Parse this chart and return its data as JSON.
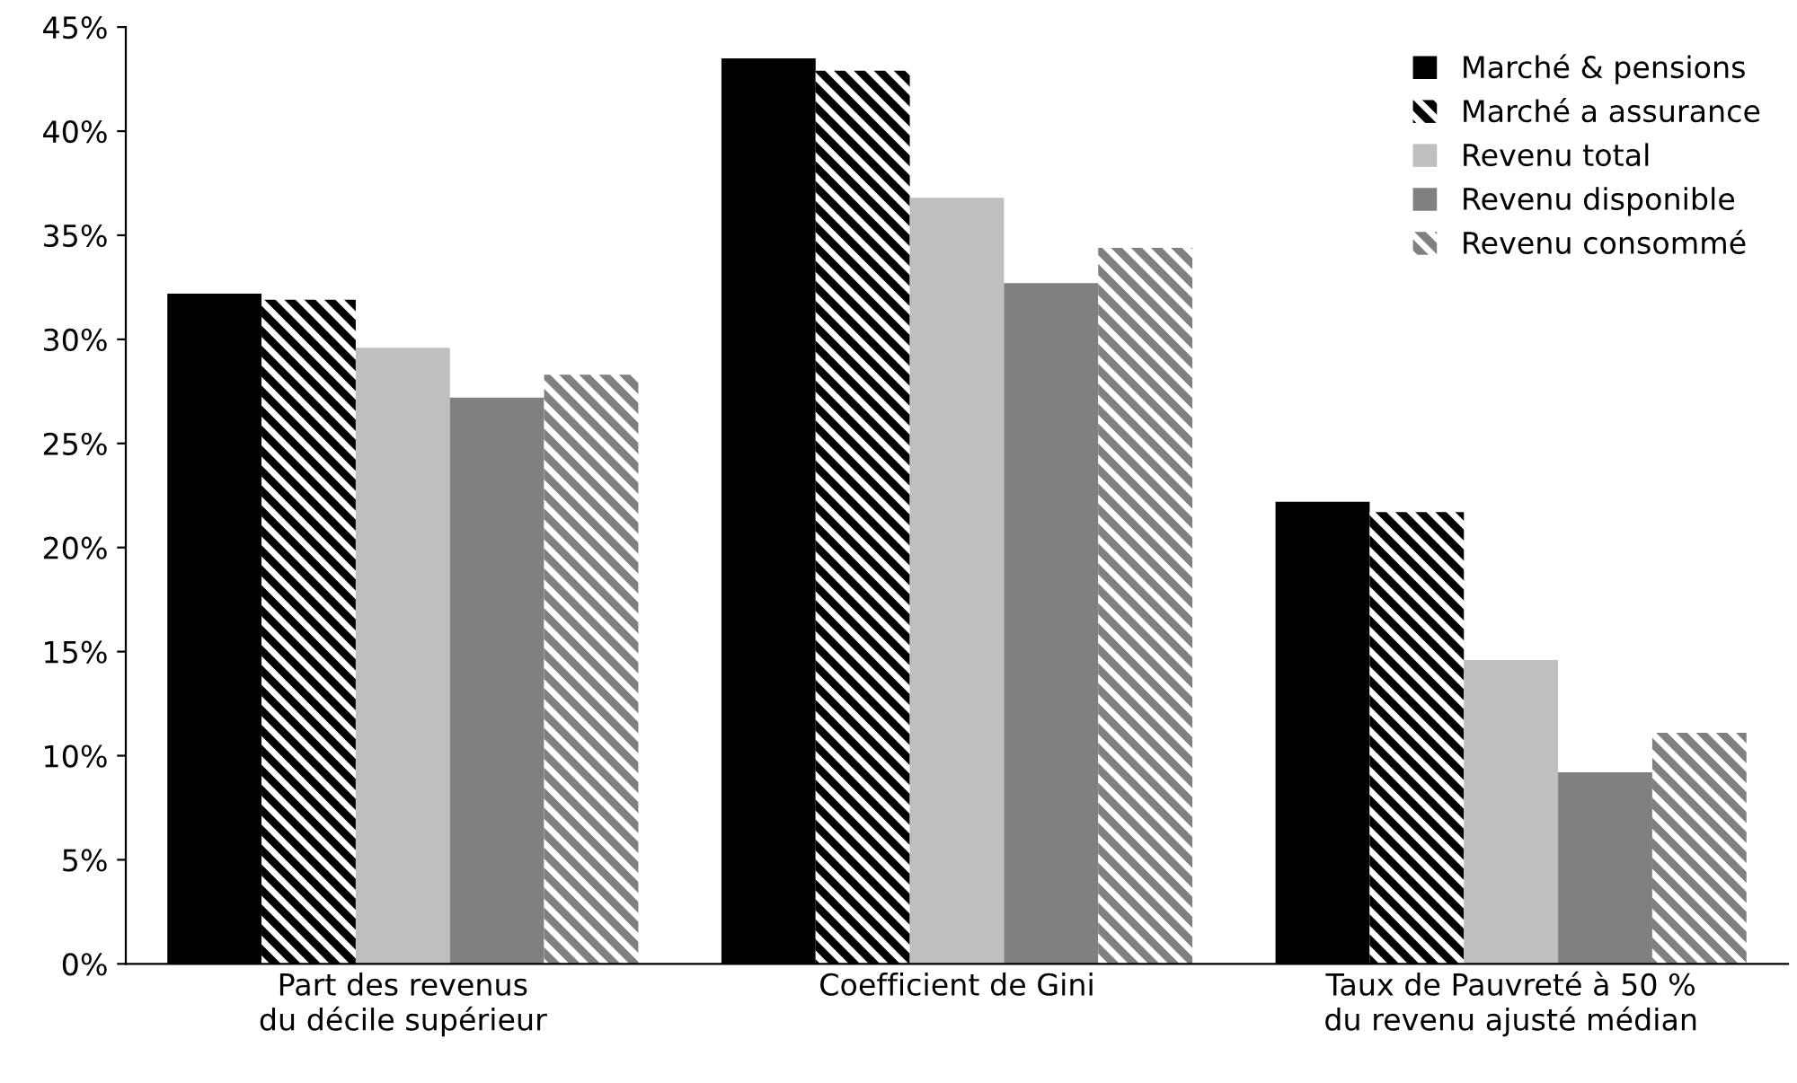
{
  "chart_data": {
    "type": "bar",
    "categories": [
      "Part des revenus\ndu décile supérieur",
      "Coefficient de Gini",
      "Taux de Pauvreté à 50 %\ndu revenu ajusté médian"
    ],
    "series": [
      {
        "name": "Marché & pensions",
        "color": "#000000",
        "values": [
          32.2,
          43.5,
          22.2
        ]
      },
      {
        "name": "Marché a assurance",
        "color": "#000000",
        "values": [
          31.9,
          42.9,
          21.7
        ]
      },
      {
        "name": "Revenu total",
        "color": "#bfbfbf",
        "values": [
          29.6,
          36.8,
          14.6
        ]
      },
      {
        "name": "Revenu disponible",
        "color": "#808080",
        "values": [
          27.2,
          32.7,
          9.2
        ]
      },
      {
        "name": "Revenu consommé",
        "color": "#808080",
        "values": [
          28.3,
          34.4,
          11.1
        ]
      }
    ],
    "ylim": [
      0,
      45
    ],
    "yticks": [
      {
        "value": 0,
        "label": "0%"
      },
      {
        "value": 5,
        "label": "5%"
      },
      {
        "value": 10,
        "label": "10%"
      },
      {
        "value": 15,
        "label": "15%"
      },
      {
        "value": 20,
        "label": "20%"
      },
      {
        "value": 25,
        "label": "25%"
      },
      {
        "value": 30,
        "label": "30%"
      },
      {
        "value": 35,
        "label": "35%"
      },
      {
        "value": 40,
        "label": "40%"
      },
      {
        "value": 45,
        "label": "45%"
      }
    ],
    "grid": false,
    "legend": "top right"
  }
}
